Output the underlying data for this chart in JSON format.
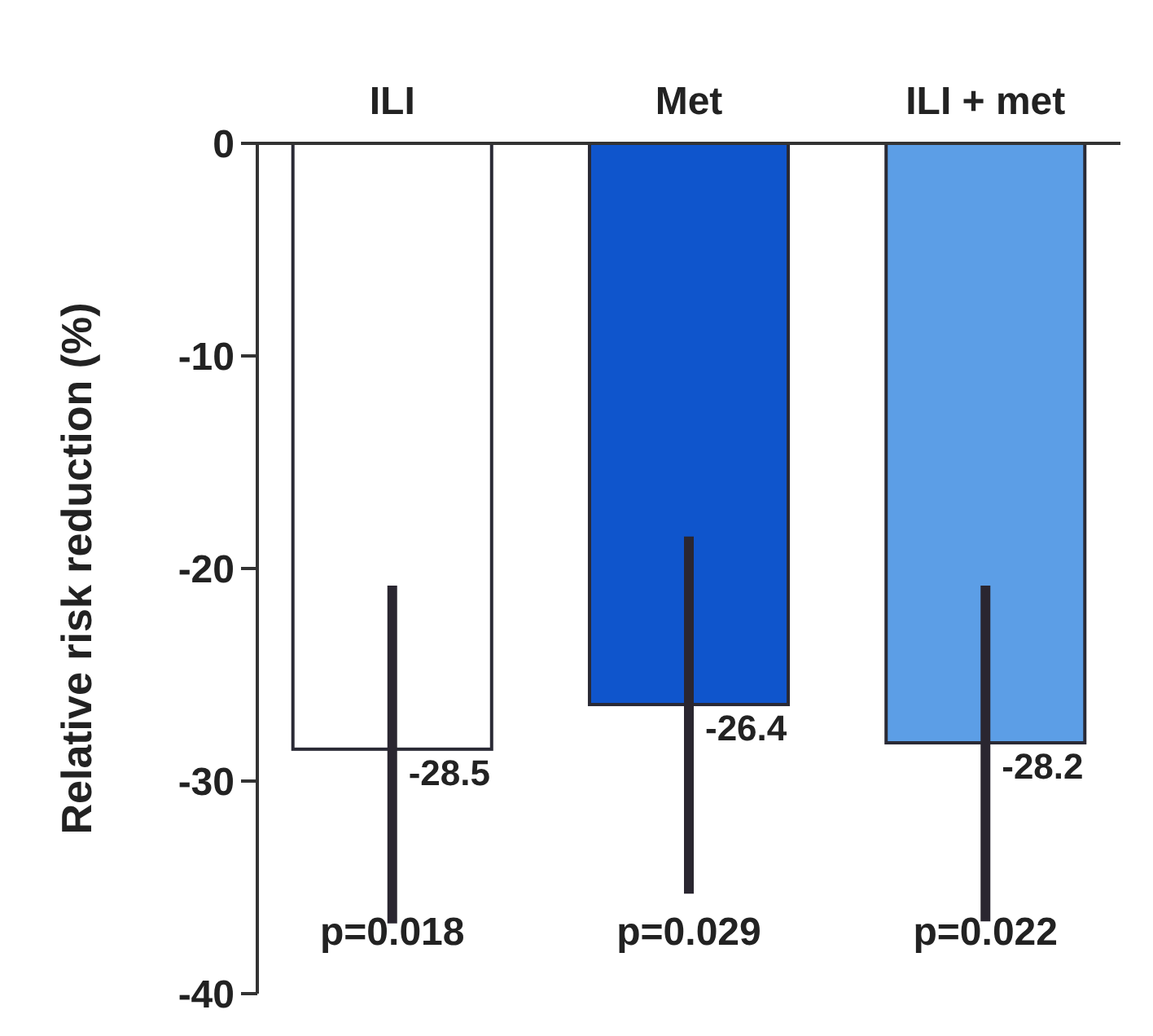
{
  "chart_data": {
    "type": "bar",
    "ylabel": "Relative risk reduction (%)",
    "categories": [
      "ILI",
      "Met",
      "ILI + met"
    ],
    "values": [
      -28.5,
      -26.4,
      -28.2
    ],
    "colors": [
      "#ffffff",
      "#0f55cc",
      "#5c9ee6"
    ],
    "errors": [
      [
        -36.7,
        -20.8
      ],
      [
        -35.3,
        -18.5
      ],
      [
        -36.6,
        -20.8
      ]
    ],
    "data_labels": true,
    "ylim": [
      -40,
      0
    ],
    "yticks": [
      0,
      -10,
      -20,
      -30,
      -40
    ],
    "grid": false,
    "annotations": [
      "p=0.018",
      "p=0.029",
      "p=0.022"
    ]
  }
}
